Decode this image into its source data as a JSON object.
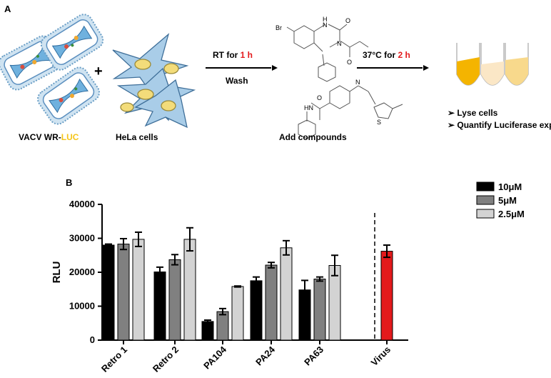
{
  "panel_a": {
    "panel_label": "A",
    "virus_label_prefix": "VACV WR-",
    "virus_label_highlight": "LUC",
    "hela_label": "HeLa cells",
    "plus_sign": "+",
    "step1_text_prefix": "RT for ",
    "step1_text_highlight": "1 h",
    "step1_sub": "Wash",
    "compound_label": "Add compounds",
    "step2_text_prefix": "37°C for ",
    "step2_text_highlight": "2 h",
    "atoms": {
      "h1": "H",
      "n1": "N",
      "o1": "O",
      "br": "Br",
      "n2": "N",
      "o2": "O",
      "n3": "N",
      "hn": "HN",
      "o3": "O",
      "s": "S"
    },
    "bullets": [
      "Lyse cells",
      "Quantify Luciferase expression"
    ],
    "colors": {
      "highlight_red": "#e31a1c",
      "luc_yellow": "#f5c518",
      "cell_blue": "#a9cde8"
    }
  },
  "panel_b": {
    "panel_label": "B"
  },
  "chart_data": {
    "type": "bar",
    "ylabel": "RLU",
    "ylim": [
      0,
      40000
    ],
    "yticks": [
      "0",
      "10000",
      "20000",
      "30000",
      "40000"
    ],
    "categories": [
      "Retro 1",
      "Retro 2",
      "PA104",
      "PA24",
      "PA63",
      "Virus"
    ],
    "series": [
      {
        "name": "10μM",
        "color": "#000000",
        "values": [
          28000,
          20100,
          5500,
          17500,
          14800,
          null
        ],
        "errors": [
          300,
          1400,
          400,
          1100,
          2800,
          null
        ]
      },
      {
        "name": "5μM",
        "color": "#808080",
        "values": [
          28300,
          23700,
          8400,
          22100,
          18000,
          null
        ],
        "errors": [
          1600,
          1500,
          900,
          800,
          600,
          null
        ]
      },
      {
        "name": "2.5μM",
        "color": "#d3d3d3",
        "values": [
          29700,
          29700,
          15800,
          27200,
          22000,
          null
        ],
        "errors": [
          2100,
          3400,
          150,
          2100,
          3000,
          null
        ]
      }
    ],
    "control": {
      "category": "Virus",
      "value": 26200,
      "error": 1800,
      "color": "#e31a1c"
    },
    "legend_position": "top-right",
    "grid": false
  }
}
